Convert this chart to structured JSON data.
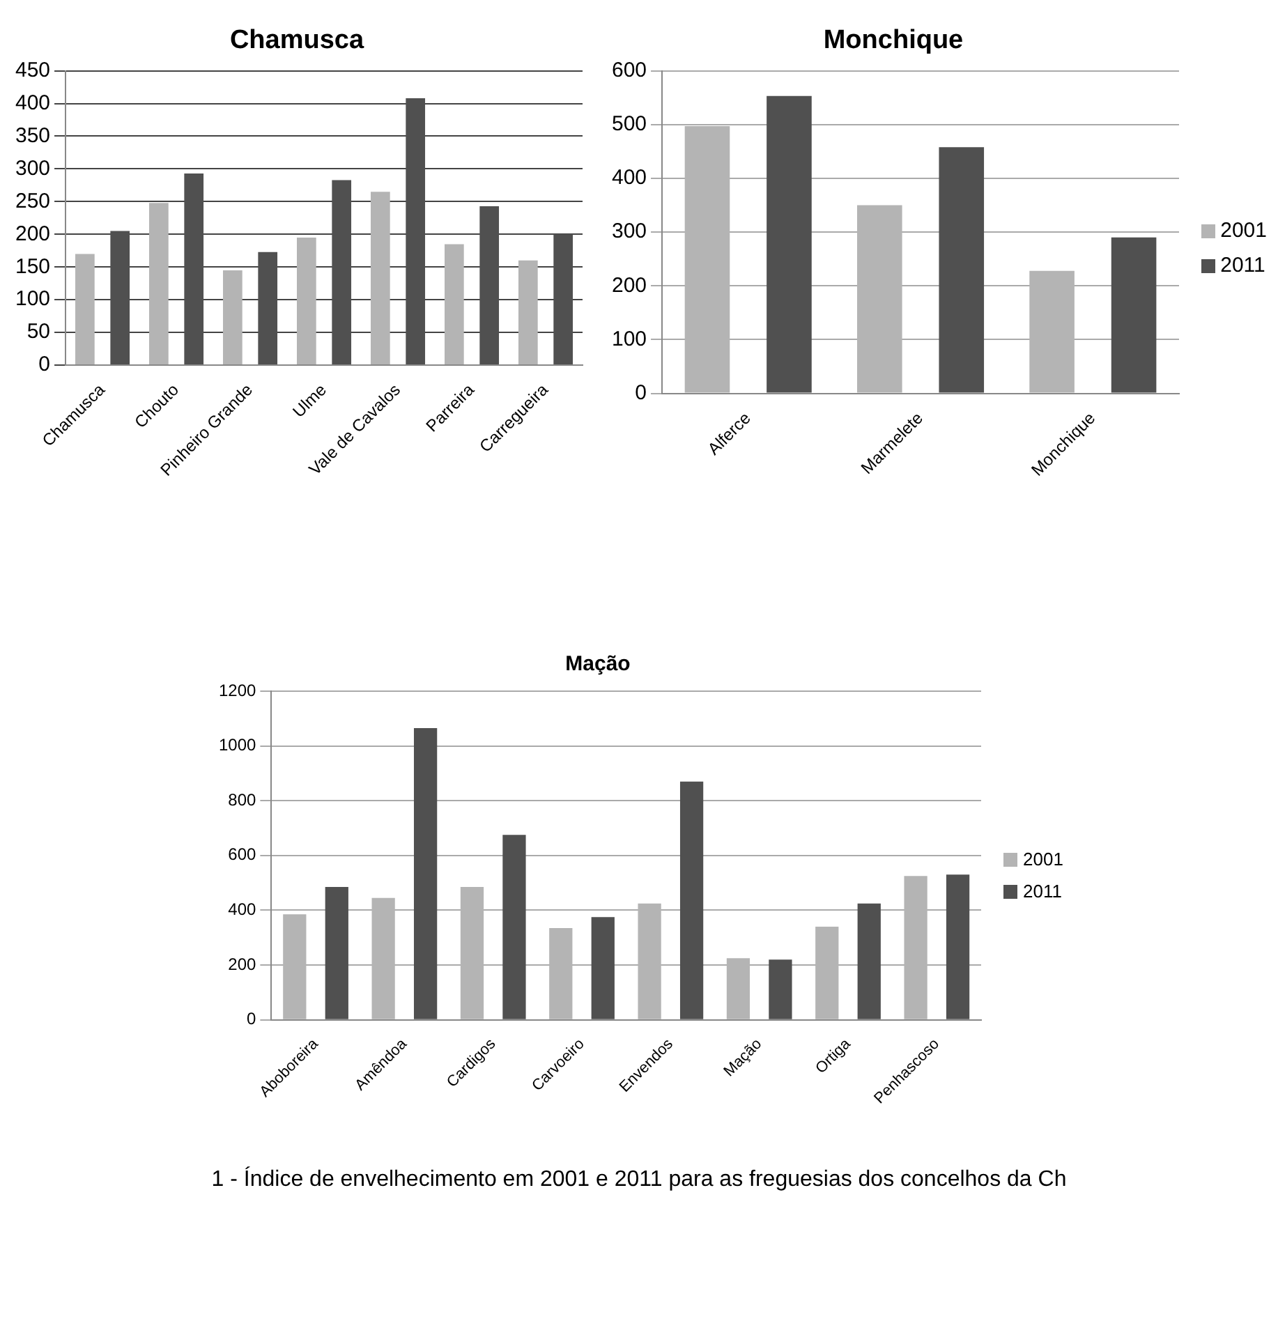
{
  "chart_data": [
    {
      "type": "bar",
      "title": "Chamusca",
      "categories": [
        "Chamusca",
        "Chouto",
        "Pinheiro Grande",
        "Ulme",
        "Vale de Cavalos",
        "Parreira",
        "Carregueira"
      ],
      "series": [
        {
          "color": "#b4b4b4",
          "values": [
            170,
            248,
            145,
            195,
            265,
            185,
            160
          ]
        },
        {
          "color": "#505050",
          "values": [
            205,
            293,
            173,
            283,
            408,
            243,
            200
          ]
        }
      ],
      "ylim": [
        0,
        450
      ],
      "yticks": [
        0,
        50,
        100,
        150,
        200,
        250,
        300,
        350,
        400,
        450
      ],
      "grid": "y",
      "legend": false
    },
    {
      "type": "bar",
      "title": "Monchique",
      "categories": [
        "Alferce",
        "Marmelete",
        "Monchique"
      ],
      "series": [
        {
          "name": "2001",
          "color": "#b4b4b4",
          "values": [
            497,
            350,
            228
          ]
        },
        {
          "name": "2011",
          "color": "#505050",
          "values": [
            553,
            458,
            290
          ]
        }
      ],
      "ylim": [
        0,
        600
      ],
      "yticks": [
        0,
        100,
        200,
        300,
        400,
        500,
        600
      ],
      "grid": "y",
      "legend": "right"
    },
    {
      "type": "bar",
      "title": "Mação",
      "categories": [
        "Aboboreira",
        "Amêndoa",
        "Cardigos",
        "Carvoeiro",
        "Envendos",
        "Mação",
        "Ortiga",
        "Penhascoso"
      ],
      "series": [
        {
          "name": "2001",
          "color": "#b4b4b4",
          "values": [
            385,
            445,
            485,
            335,
            425,
            225,
            340,
            525
          ]
        },
        {
          "name": "2011",
          "color": "#505050",
          "values": [
            485,
            1065,
            675,
            375,
            870,
            220,
            425,
            530
          ]
        }
      ],
      "ylim": [
        0,
        1200
      ],
      "yticks": [
        0,
        200,
        400,
        600,
        800,
        1000,
        1200
      ],
      "grid": "y",
      "legend": "right",
      "annotations": [
        "1 - Índice de envelhecimento em 2001 e 2011 para as freguesias dos concelhos da Ch"
      ]
    }
  ]
}
